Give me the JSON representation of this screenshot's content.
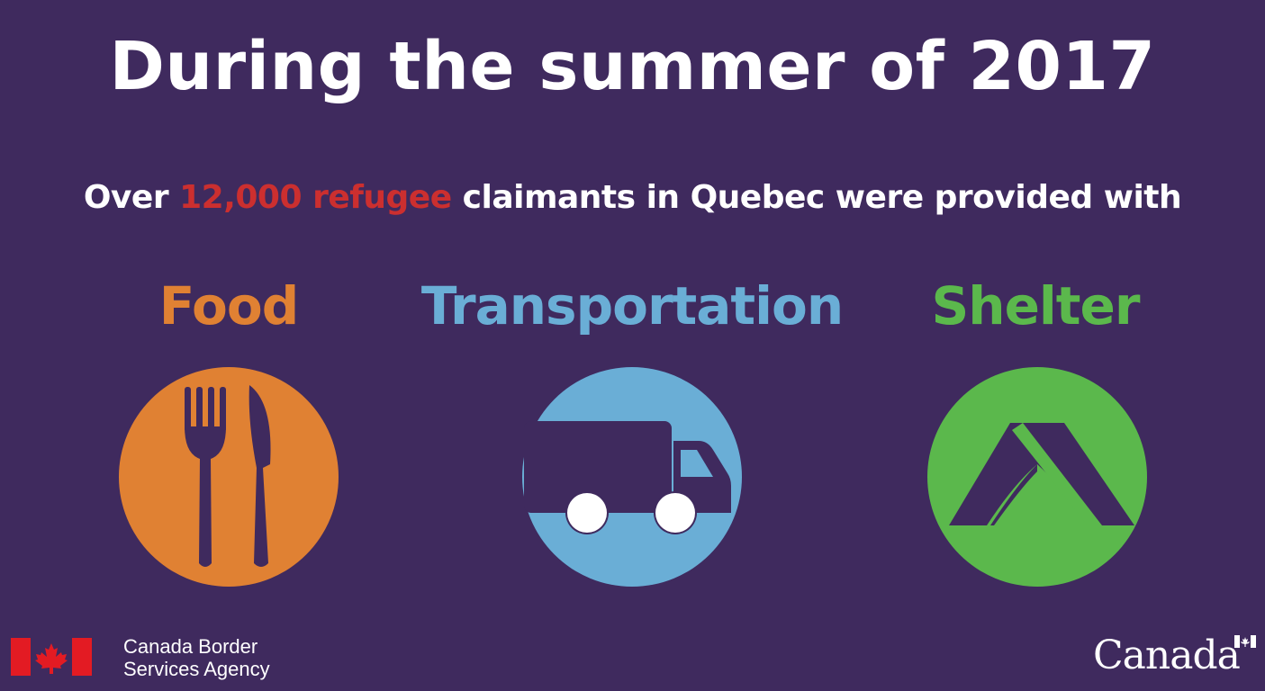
{
  "header": {
    "title": "During the summer of 2017"
  },
  "subtitle": {
    "prefix": "Over ",
    "highlight": "12,000 refugee",
    "suffix": " claimants in Quebec were provided with"
  },
  "services": [
    {
      "label": "Food",
      "icon": "fork-knife-icon",
      "color": "#e08133"
    },
    {
      "label": "Transportation",
      "icon": "truck-icon",
      "color": "#6aaed6"
    },
    {
      "label": "Shelter",
      "icon": "tent-icon",
      "color": "#5bb84c"
    }
  ],
  "footer": {
    "agency_line1": "Canada Border",
    "agency_line2": "Services Agency",
    "wordmark": "Canada"
  },
  "colors": {
    "background": "#3f2a5e",
    "highlight": "#cc2f2f",
    "flag_red": "#e31b23",
    "text": "#ffffff"
  }
}
